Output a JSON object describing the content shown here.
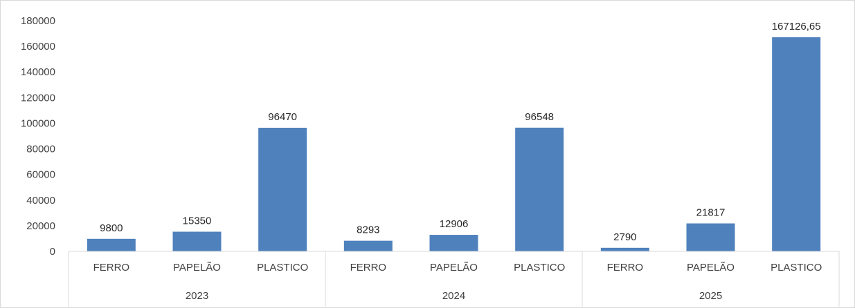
{
  "chart_data": {
    "type": "bar",
    "groups": [
      {
        "label": "2023",
        "categories": [
          "FERRO",
          "PAPELÃO",
          "PLASTICO"
        ],
        "values": [
          9800,
          15350,
          96470
        ],
        "value_labels": [
          "9800",
          "15350",
          "96470"
        ]
      },
      {
        "label": "2024",
        "categories": [
          "FERRO",
          "PAPELÃO",
          "PLASTICO"
        ],
        "values": [
          8293,
          12906,
          96548
        ],
        "value_labels": [
          "8293",
          "12906",
          "96548"
        ]
      },
      {
        "label": "2025",
        "categories": [
          "FERRO",
          "PAPELÃO",
          "PLASTICO"
        ],
        "values": [
          2790,
          21817,
          167126.65
        ],
        "value_labels": [
          "2790",
          "21817",
          "167126,65"
        ]
      }
    ],
    "y_ticks": [
      "0",
      "20000",
      "40000",
      "60000",
      "80000",
      "100000",
      "120000",
      "140000",
      "160000",
      "180000"
    ],
    "ylim": [
      0,
      180000
    ],
    "grid": false,
    "legend": "none",
    "bar_color": "#4f81bd",
    "axis_color": "#d9d9d9"
  }
}
